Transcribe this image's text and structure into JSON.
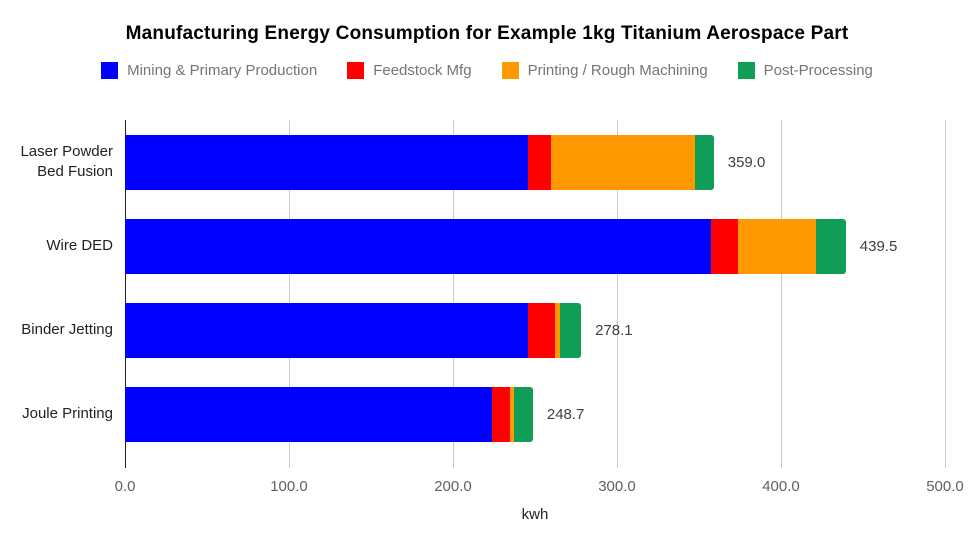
{
  "chart_data": {
    "type": "bar",
    "stacked": true,
    "orientation": "horizontal",
    "title": "Manufacturing Energy Consumption for Example 1kg Titanium Aerospace Part",
    "xlabel": "kwh",
    "xlim": [
      0,
      500
    ],
    "grid": true,
    "legend_position": "top",
    "x_ticks": [
      {
        "value": 0,
        "label": "0.0"
      },
      {
        "value": 100,
        "label": "100.0"
      },
      {
        "value": 200,
        "label": "200.0"
      },
      {
        "value": 300,
        "label": "300.0"
      },
      {
        "value": 400,
        "label": "400.0"
      },
      {
        "value": 500,
        "label": "500.0"
      }
    ],
    "categories": [
      {
        "label": "Laser Powder Bed Fusion",
        "lines": [
          "Laser Powder",
          "Bed Fusion"
        ],
        "total": 359.0,
        "total_label": "359.0"
      },
      {
        "label": "Wire DED",
        "lines": [
          "Wire DED"
        ],
        "total": 439.5,
        "total_label": "439.5"
      },
      {
        "label": "Binder Jetting",
        "lines": [
          "Binder Jetting"
        ],
        "total": 278.1,
        "total_label": "278.1"
      },
      {
        "label": "Joule Printing",
        "lines": [
          "Joule Printing"
        ],
        "total": 248.7,
        "total_label": "248.7"
      }
    ],
    "series": [
      {
        "name": "Mining & Primary Production",
        "color": "#0000ff",
        "values": [
          246.0,
          357.5,
          246.0,
          224.0
        ]
      },
      {
        "name": "Feedstock Mfg",
        "color": "#ff0000",
        "values": [
          13.5,
          16.5,
          16.0,
          10.5
        ]
      },
      {
        "name": "Printing / Rough Machining",
        "color": "#ff9900",
        "values": [
          88.0,
          47.5,
          3.0,
          3.0
        ]
      },
      {
        "name": "Post-Processing",
        "color": "#0f9d58",
        "values": [
          11.5,
          18.0,
          13.1,
          11.2
        ]
      }
    ],
    "colors": {
      "grid": "#cccccc",
      "zero_line": "#222222",
      "background": "#ffffff",
      "title_text": "#000000",
      "legend_text": "#757575",
      "tick_text": "#616161",
      "category_text": "#222222",
      "value_label_text": "#404040",
      "axis_title_text": "#222222"
    }
  }
}
